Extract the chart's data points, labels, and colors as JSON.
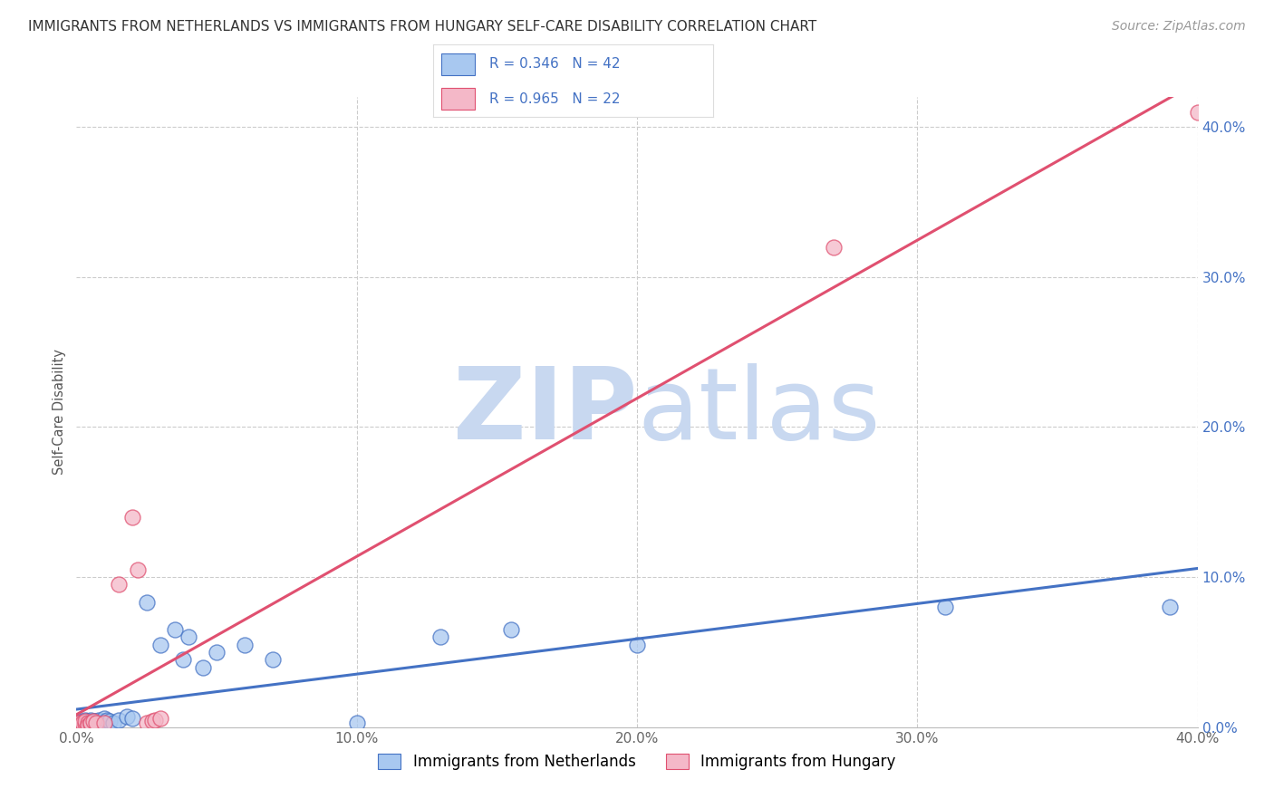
{
  "title": "IMMIGRANTS FROM NETHERLANDS VS IMMIGRANTS FROM HUNGARY SELF-CARE DISABILITY CORRELATION CHART",
  "source": "Source: ZipAtlas.com",
  "ylabel": "Self-Care Disability",
  "xmin": 0.0,
  "xmax": 0.4,
  "ymin": 0.0,
  "ymax": 0.42,
  "yticks": [
    0.0,
    0.1,
    0.2,
    0.3,
    0.4
  ],
  "xticks": [
    0.0,
    0.1,
    0.2,
    0.3,
    0.4
  ],
  "legend_labels_bottom": [
    "Immigrants from Netherlands",
    "Immigrants from Hungary"
  ],
  "R_netherlands": 0.346,
  "N_netherlands": 42,
  "R_hungary": 0.965,
  "N_hungary": 22,
  "color_netherlands": "#A8C8F0",
  "color_hungary": "#F4B8C8",
  "line_color_netherlands": "#4472C4",
  "line_color_hungary": "#E05070",
  "watermark_zip": "ZIP",
  "watermark_atlas": "atlas",
  "watermark_color": "#C8D8F0",
  "scatter_netherlands": [
    [
      0.001,
      0.002
    ],
    [
      0.001,
      0.003
    ],
    [
      0.002,
      0.002
    ],
    [
      0.002,
      0.004
    ],
    [
      0.003,
      0.001
    ],
    [
      0.003,
      0.003
    ],
    [
      0.003,
      0.005
    ],
    [
      0.004,
      0.002
    ],
    [
      0.004,
      0.004
    ],
    [
      0.005,
      0.002
    ],
    [
      0.005,
      0.003
    ],
    [
      0.005,
      0.005
    ],
    [
      0.006,
      0.003
    ],
    [
      0.006,
      0.004
    ],
    [
      0.007,
      0.002
    ],
    [
      0.007,
      0.004
    ],
    [
      0.008,
      0.003
    ],
    [
      0.008,
      0.005
    ],
    [
      0.009,
      0.003
    ],
    [
      0.01,
      0.004
    ],
    [
      0.01,
      0.006
    ],
    [
      0.011,
      0.005
    ],
    [
      0.012,
      0.004
    ],
    [
      0.013,
      0.003
    ],
    [
      0.015,
      0.005
    ],
    [
      0.018,
      0.007
    ],
    [
      0.02,
      0.006
    ],
    [
      0.025,
      0.083
    ],
    [
      0.03,
      0.055
    ],
    [
      0.035,
      0.065
    ],
    [
      0.038,
      0.045
    ],
    [
      0.04,
      0.06
    ],
    [
      0.045,
      0.04
    ],
    [
      0.05,
      0.05
    ],
    [
      0.06,
      0.055
    ],
    [
      0.07,
      0.045
    ],
    [
      0.1,
      0.003
    ],
    [
      0.13,
      0.06
    ],
    [
      0.155,
      0.065
    ],
    [
      0.2,
      0.055
    ],
    [
      0.31,
      0.08
    ],
    [
      0.39,
      0.08
    ]
  ],
  "scatter_hungary": [
    [
      0.001,
      0.002
    ],
    [
      0.001,
      0.003
    ],
    [
      0.002,
      0.002
    ],
    [
      0.002,
      0.003
    ],
    [
      0.003,
      0.002
    ],
    [
      0.003,
      0.004
    ],
    [
      0.004,
      0.003
    ],
    [
      0.004,
      0.001
    ],
    [
      0.005,
      0.002
    ],
    [
      0.005,
      0.003
    ],
    [
      0.006,
      0.004
    ],
    [
      0.007,
      0.003
    ],
    [
      0.01,
      0.003
    ],
    [
      0.015,
      0.095
    ],
    [
      0.02,
      0.14
    ],
    [
      0.022,
      0.105
    ],
    [
      0.025,
      0.003
    ],
    [
      0.027,
      0.004
    ],
    [
      0.028,
      0.005
    ],
    [
      0.03,
      0.006
    ],
    [
      0.27,
      0.32
    ],
    [
      0.4,
      0.41
    ]
  ],
  "line_nl_slope": 0.18,
  "line_nl_intercept": 0.01,
  "line_hu_slope": 1.02,
  "line_hu_intercept": -0.002
}
